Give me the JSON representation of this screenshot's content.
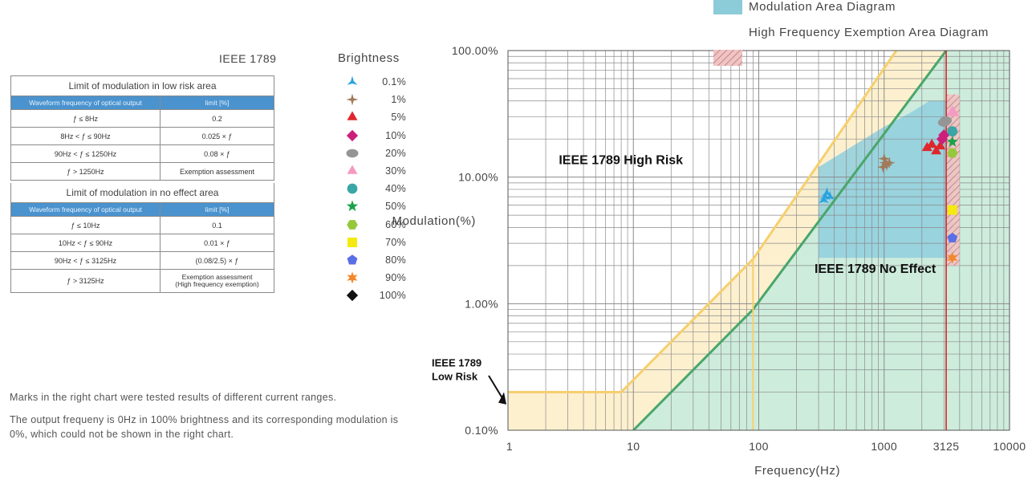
{
  "standard_title": "IEEE 1789",
  "tables": [
    {
      "title": "Limit of modulation in low risk area",
      "headers": [
        "Waveform frequency of optical output",
        "limit [%]"
      ],
      "rows": [
        [
          "ƒ ≤ 8Hz",
          "0.2"
        ],
        [
          "8Hz < ƒ ≤ 90Hz",
          "0.025 × ƒ"
        ],
        [
          "90Hz < ƒ ≤ 1250Hz",
          "0.08 × ƒ"
        ],
        [
          "ƒ > 1250Hz",
          "Exemption assessment"
        ]
      ]
    },
    {
      "title": "Limit of modulation in no effect area",
      "headers": [
        "Waveform frequency of optical output",
        "limit [%]"
      ],
      "rows": [
        [
          "ƒ ≤ 10Hz",
          "0.1"
        ],
        [
          "10Hz < ƒ ≤ 90Hz",
          "0.01 × ƒ"
        ],
        [
          "90Hz < ƒ ≤ 3125Hz",
          "(0.08/2.5) × ƒ"
        ],
        [
          "ƒ > 3125Hz",
          "Exemption assessment\n(High frequency exemption)"
        ]
      ]
    }
  ],
  "brightness_legend": {
    "title": "Brightness",
    "items": [
      {
        "label": "0.1%",
        "marker": "tri-star-icon",
        "color": "#29a3df"
      },
      {
        "label": "1%",
        "marker": "four-point-star-icon",
        "color": "#a07a5a"
      },
      {
        "label": "5%",
        "marker": "triangle-icon",
        "color": "#e0262c"
      },
      {
        "label": "10%",
        "marker": "diamond-icon",
        "color": "#cc1f7c"
      },
      {
        "label": "20%",
        "marker": "ellipse-icon",
        "color": "#959595"
      },
      {
        "label": "30%",
        "marker": "triangle-icon",
        "color": "#f59ac2"
      },
      {
        "label": "40%",
        "marker": "circle-icon",
        "color": "#3aa6a6"
      },
      {
        "label": "50%",
        "marker": "star-icon",
        "color": "#1aa34a"
      },
      {
        "label": "60%",
        "marker": "hexagon-icon",
        "color": "#96c83c"
      },
      {
        "label": "70%",
        "marker": "square-icon",
        "color": "#f4ea10"
      },
      {
        "label": "80%",
        "marker": "pentagon-icon",
        "color": "#5a6ee6"
      },
      {
        "label": "90%",
        "marker": "six-point-star-icon",
        "color": "#f3872a"
      },
      {
        "label": "100%",
        "marker": "diamond-icon",
        "color": "#111111"
      }
    ]
  },
  "notes": [
    "Marks in the right chart were tested results of different current ranges.",
    "The output frequeny is 0Hz in 100% brightness and its corresponding modulation is 0%, which could not be shown in the right chart."
  ],
  "chart_legend": [
    {
      "label": "Modulation Area Diagram",
      "color": "#8ccbd8",
      "pattern": "solid"
    },
    {
      "label": "High Frequency Exemption Area Diagram",
      "color": "#e8a8a8",
      "pattern": "hatched"
    }
  ],
  "chart_data": {
    "type": "scatter",
    "xscale": "log",
    "yscale": "log",
    "xlim": [
      1,
      10000
    ],
    "ylim": [
      0.1,
      100
    ],
    "xlabel": "Frequency(Hz)",
    "ylabel": "Modulation(%)",
    "x_ticks": [
      "1",
      "10",
      "100",
      "1000",
      "3125",
      "10000"
    ],
    "x_tick_values": [
      1,
      10,
      100,
      1000,
      3125,
      10000
    ],
    "highlight_x_tick": "3125",
    "y_ticks": [
      "0.10%",
      "1.00%",
      "10.00%",
      "100.00%"
    ],
    "y_tick_values": [
      0.1,
      1,
      10,
      100
    ],
    "grid": true,
    "annotations": [
      "IEEE 1789 High Risk",
      "IEEE 1789 No Effect",
      "IEEE 1789",
      "Low Risk"
    ],
    "low_risk_limit": [
      [
        1,
        0.2
      ],
      [
        8,
        0.2
      ],
      [
        90,
        2.25
      ],
      [
        1250,
        100
      ]
    ],
    "no_effect_limit": [
      [
        10,
        0.1
      ],
      [
        90,
        0.9
      ],
      [
        3125,
        100
      ]
    ],
    "modulation_area": {
      "x": [
        300,
        3500
      ],
      "y": [
        2.3,
        40
      ]
    },
    "exemption_area": {
      "x": [
        3125,
        4000
      ],
      "y": [
        2.0,
        45
      ]
    },
    "series": [
      {
        "name": "0.1%",
        "points": [
          [
            330,
            6.6
          ],
          [
            340,
            7.0
          ],
          [
            350,
            7.5
          ],
          [
            370,
            7.0
          ]
        ]
      },
      {
        "name": "1%",
        "points": [
          [
            980,
            12
          ],
          [
            1000,
            14
          ],
          [
            1020,
            13
          ],
          [
            1050,
            12.5
          ],
          [
            1100,
            13
          ]
        ]
      },
      {
        "name": "5%",
        "points": [
          [
            2200,
            17
          ],
          [
            2400,
            18
          ],
          [
            2600,
            16
          ],
          [
            2800,
            17.5
          ]
        ]
      },
      {
        "name": "10%",
        "points": [
          [
            2900,
            20
          ],
          [
            3000,
            21.5
          ]
        ]
      },
      {
        "name": "20%",
        "points": [
          [
            3000,
            27
          ],
          [
            3100,
            28
          ]
        ]
      },
      {
        "name": "30%",
        "points": [
          [
            3500,
            33
          ],
          [
            3600,
            32
          ]
        ]
      },
      {
        "name": "40%",
        "points": [
          [
            3500,
            23
          ]
        ]
      },
      {
        "name": "50%",
        "points": [
          [
            3500,
            19
          ]
        ]
      },
      {
        "name": "60%",
        "points": [
          [
            3500,
            15.5
          ]
        ]
      },
      {
        "name": "70%",
        "points": [
          [
            3500,
            5.5
          ]
        ]
      },
      {
        "name": "80%",
        "points": [
          [
            3500,
            3.3
          ]
        ]
      },
      {
        "name": "90%",
        "points": [
          [
            3500,
            2.3
          ]
        ]
      }
    ]
  }
}
